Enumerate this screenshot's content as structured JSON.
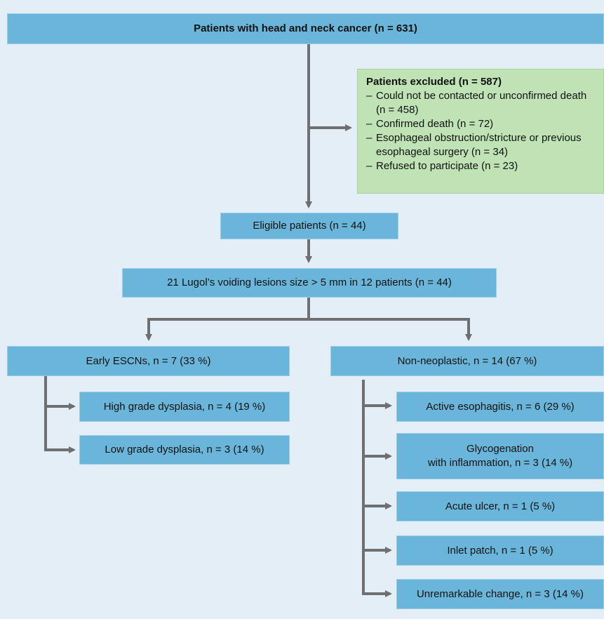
{
  "nodes": {
    "root": "Patients with head and neck cancer (n = 631)",
    "eligible": "Eligible patients (n = 44)",
    "lesions": "21 Lugol’s voiding lesions size > 5 mm in 12 patients (n = 44)",
    "early": "Early ESCNs, n = 7 (33 %)",
    "nonneo": "Non-neoplastic, n = 14 (67 %)",
    "high": "High grade dysplasia, n = 4 (19 %)",
    "low": "Low grade dysplasia, n = 3 (14 %)",
    "active": "Active esophagitis, n = 6 (29 %)",
    "glyco_line1": "Glycogenation",
    "glyco_line2": "with inflammation, n = 3 (14 %)",
    "acute": "Acute ulcer, n = 1 (5 %)",
    "inlet": "Inlet patch, n = 1 (5 %)",
    "unremarkable": "Unremarkable change, n = 3 (14 %)"
  },
  "excluded": {
    "title": "Patients excluded  (n = 587)",
    "items": [
      "Could not be contacted or unconfirmed death (n = 458)",
      "Confirmed death (n = 72)",
      "Esophageal obstruction/stricture or previous esophageal surgery (n = 34)",
      "Refused to participate (n = 23)"
    ],
    "bullet": "–"
  },
  "colors": {
    "background": "#e3eef6",
    "box": "#6ab6da",
    "excluded_box": "#bfe3b4",
    "connector": "#6f6f6f"
  }
}
